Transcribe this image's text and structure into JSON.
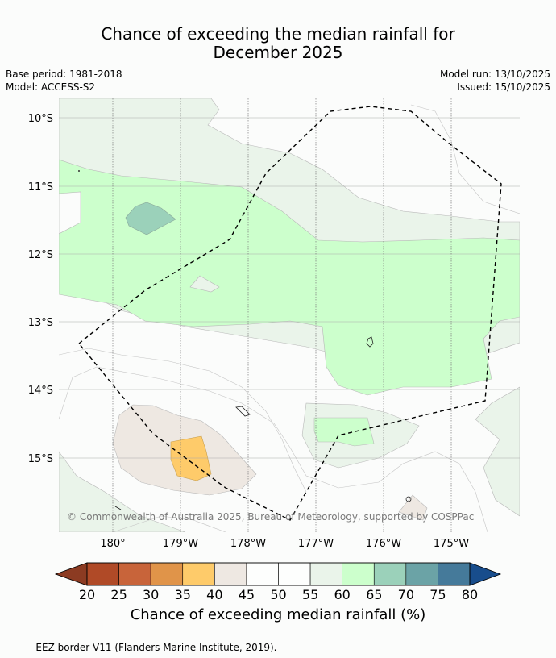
{
  "title_line1": "Chance of exceeding the median rainfall for",
  "title_line2": "December 2025",
  "meta": {
    "base_period": "Base period: 1981-2018",
    "model": "Model: ACCESS-S2",
    "model_run": "Model run: 13/10/2025",
    "issued": "Issued: 15/10/2025"
  },
  "map": {
    "lat_labels": [
      "10°S",
      "11°S",
      "12°S",
      "13°S",
      "14°S",
      "15°S"
    ],
    "lon_labels": [
      "180°",
      "179°W",
      "178°W",
      "177°W",
      "176°W",
      "175°W"
    ],
    "copyright": "© Commonwealth of Australia 2025, Bureau of Meteorology, supported by COSPPac"
  },
  "colorbar": {
    "labels": [
      "20",
      "25",
      "30",
      "35",
      "40",
      "45",
      "50",
      "55",
      "60",
      "65",
      "70",
      "75",
      "80"
    ],
    "colors": [
      "#8c3b22",
      "#b04a27",
      "#c8643a",
      "#e09449",
      "#fecb6a",
      "#eee8e2",
      "#fdfefd",
      "#fdfefd",
      "#eaf4ea",
      "#ccffcc",
      "#9bd1ba",
      "#6ba3a6",
      "#457a9a",
      "#184d8c"
    ],
    "title": "Chance of exceeding median rainfall (%)"
  },
  "legend": {
    "eez_label": "--  --  -- EEZ border V11 (Flanders Marine Institute, 2019)."
  }
}
